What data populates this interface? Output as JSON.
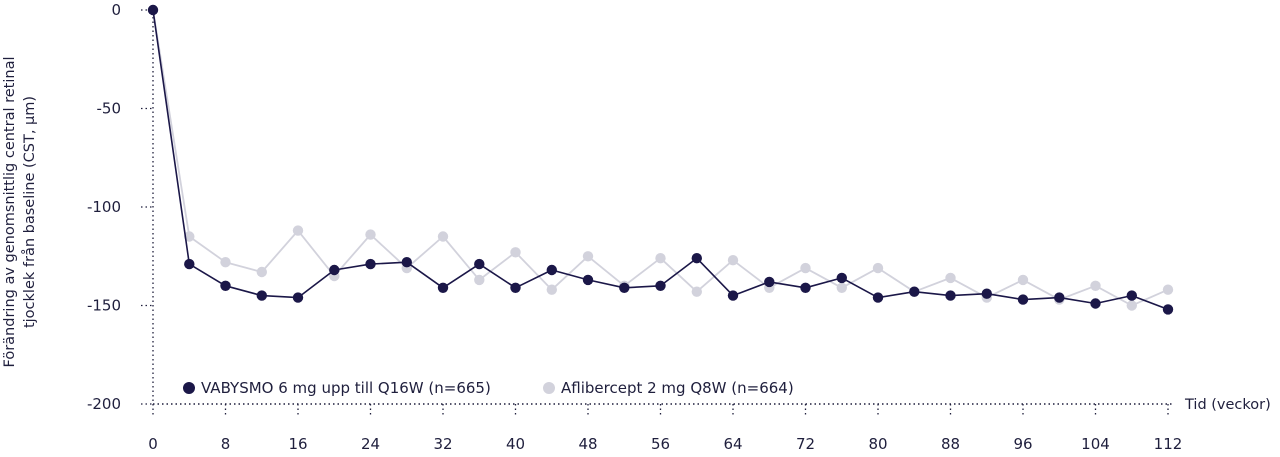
{
  "chart_data": {
    "type": "line",
    "ylabel_line1": "Förändring av genomsnittlig central retinal",
    "ylabel_line2": "tjocklek från baseline (CST, µm)",
    "xlabel": "Tid (veckor)",
    "ylim": [
      -200,
      0
    ],
    "xlim": [
      0,
      112
    ],
    "yticks": [
      0,
      -50,
      -100,
      -150,
      -200
    ],
    "xticks": [
      0,
      8,
      16,
      24,
      32,
      40,
      48,
      56,
      64,
      72,
      80,
      88,
      96,
      104,
      112
    ],
    "legend_position": "bottom-left",
    "series": [
      {
        "name": "VABYSMO 6 mg upp till Q16W (n=665)",
        "color": "#1b1748",
        "points": [
          [
            0,
            0
          ],
          [
            4,
            -129
          ],
          [
            8,
            -140
          ],
          [
            12,
            -145
          ],
          [
            16,
            -146
          ],
          [
            20,
            -132
          ],
          [
            24,
            -129
          ],
          [
            28,
            -128
          ],
          [
            32,
            -141
          ],
          [
            36,
            -129
          ],
          [
            40,
            -141
          ],
          [
            44,
            -132
          ],
          [
            48,
            -137
          ],
          [
            52,
            -141
          ],
          [
            56,
            -140
          ],
          [
            60,
            -126
          ],
          [
            64,
            -145
          ],
          [
            68,
            -138
          ],
          [
            72,
            -141
          ],
          [
            76,
            -136
          ],
          [
            80,
            -146
          ],
          [
            84,
            -143
          ],
          [
            88,
            -145
          ],
          [
            92,
            -144
          ],
          [
            96,
            -147
          ],
          [
            100,
            -146
          ],
          [
            104,
            -149
          ],
          [
            108,
            -145
          ],
          [
            112,
            -152
          ]
        ]
      },
      {
        "name": "Aflibercept 2 mg Q8W (n=664)",
        "color": "#d2d2dc",
        "points": [
          [
            0,
            0
          ],
          [
            4,
            -115
          ],
          [
            8,
            -128
          ],
          [
            12,
            -133
          ],
          [
            16,
            -112
          ],
          [
            20,
            -135
          ],
          [
            24,
            -114
          ],
          [
            28,
            -131
          ],
          [
            32,
            -115
          ],
          [
            36,
            -137
          ],
          [
            40,
            -123
          ],
          [
            44,
            -142
          ],
          [
            48,
            -125
          ],
          [
            52,
            -140
          ],
          [
            56,
            -126
          ],
          [
            60,
            -143
          ],
          [
            64,
            -127
          ],
          [
            68,
            -141
          ],
          [
            72,
            -131
          ],
          [
            76,
            -141
          ],
          [
            80,
            -131
          ],
          [
            84,
            -143
          ],
          [
            88,
            -136
          ],
          [
            92,
            -146
          ],
          [
            96,
            -137
          ],
          [
            100,
            -147
          ],
          [
            104,
            -140
          ],
          [
            108,
            -150
          ],
          [
            112,
            -142
          ]
        ]
      }
    ]
  }
}
